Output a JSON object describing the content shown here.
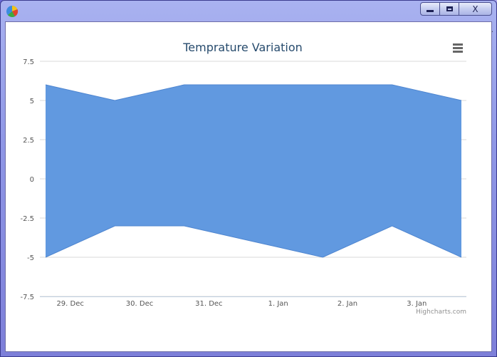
{
  "window": {
    "controls": {
      "minimize": "",
      "maximize": "",
      "close": "X"
    }
  },
  "colors": {
    "area_fill": "#6199e0",
    "area_line": "#4f86d0",
    "grid": "#d8d8d8",
    "title": "#274b6d"
  },
  "chart": {
    "credits": "Highcharts.com",
    "menu_icon": "hamburger-menu-icon"
  },
  "chart_data": {
    "type": "area",
    "title": "Temprature Variation",
    "xlabel": "",
    "ylabel": "",
    "x_ticks": [
      "29. Dec",
      "30. Dec",
      "31. Dec",
      "1. Jan",
      "2. Jan",
      "3. Jan"
    ],
    "x": [
      "28. Dec 12:00",
      "29. Dec 12:00",
      "30. Dec 12:00",
      "31. Dec 12:00",
      "1. Jan 12:00",
      "2. Jan 12:00",
      "3. Jan 12:00"
    ],
    "high": [
      6,
      5,
      6,
      6,
      6,
      6,
      5
    ],
    "low": [
      -5,
      -3,
      -3,
      -4,
      -5,
      -3,
      -5
    ],
    "y_ticks": [
      "7.5",
      "5",
      "2.5",
      "0",
      "-2.5",
      "-5",
      "-7.5"
    ],
    "ylim": [
      -7.5,
      7.5
    ],
    "grid": true,
    "legend": "none"
  }
}
